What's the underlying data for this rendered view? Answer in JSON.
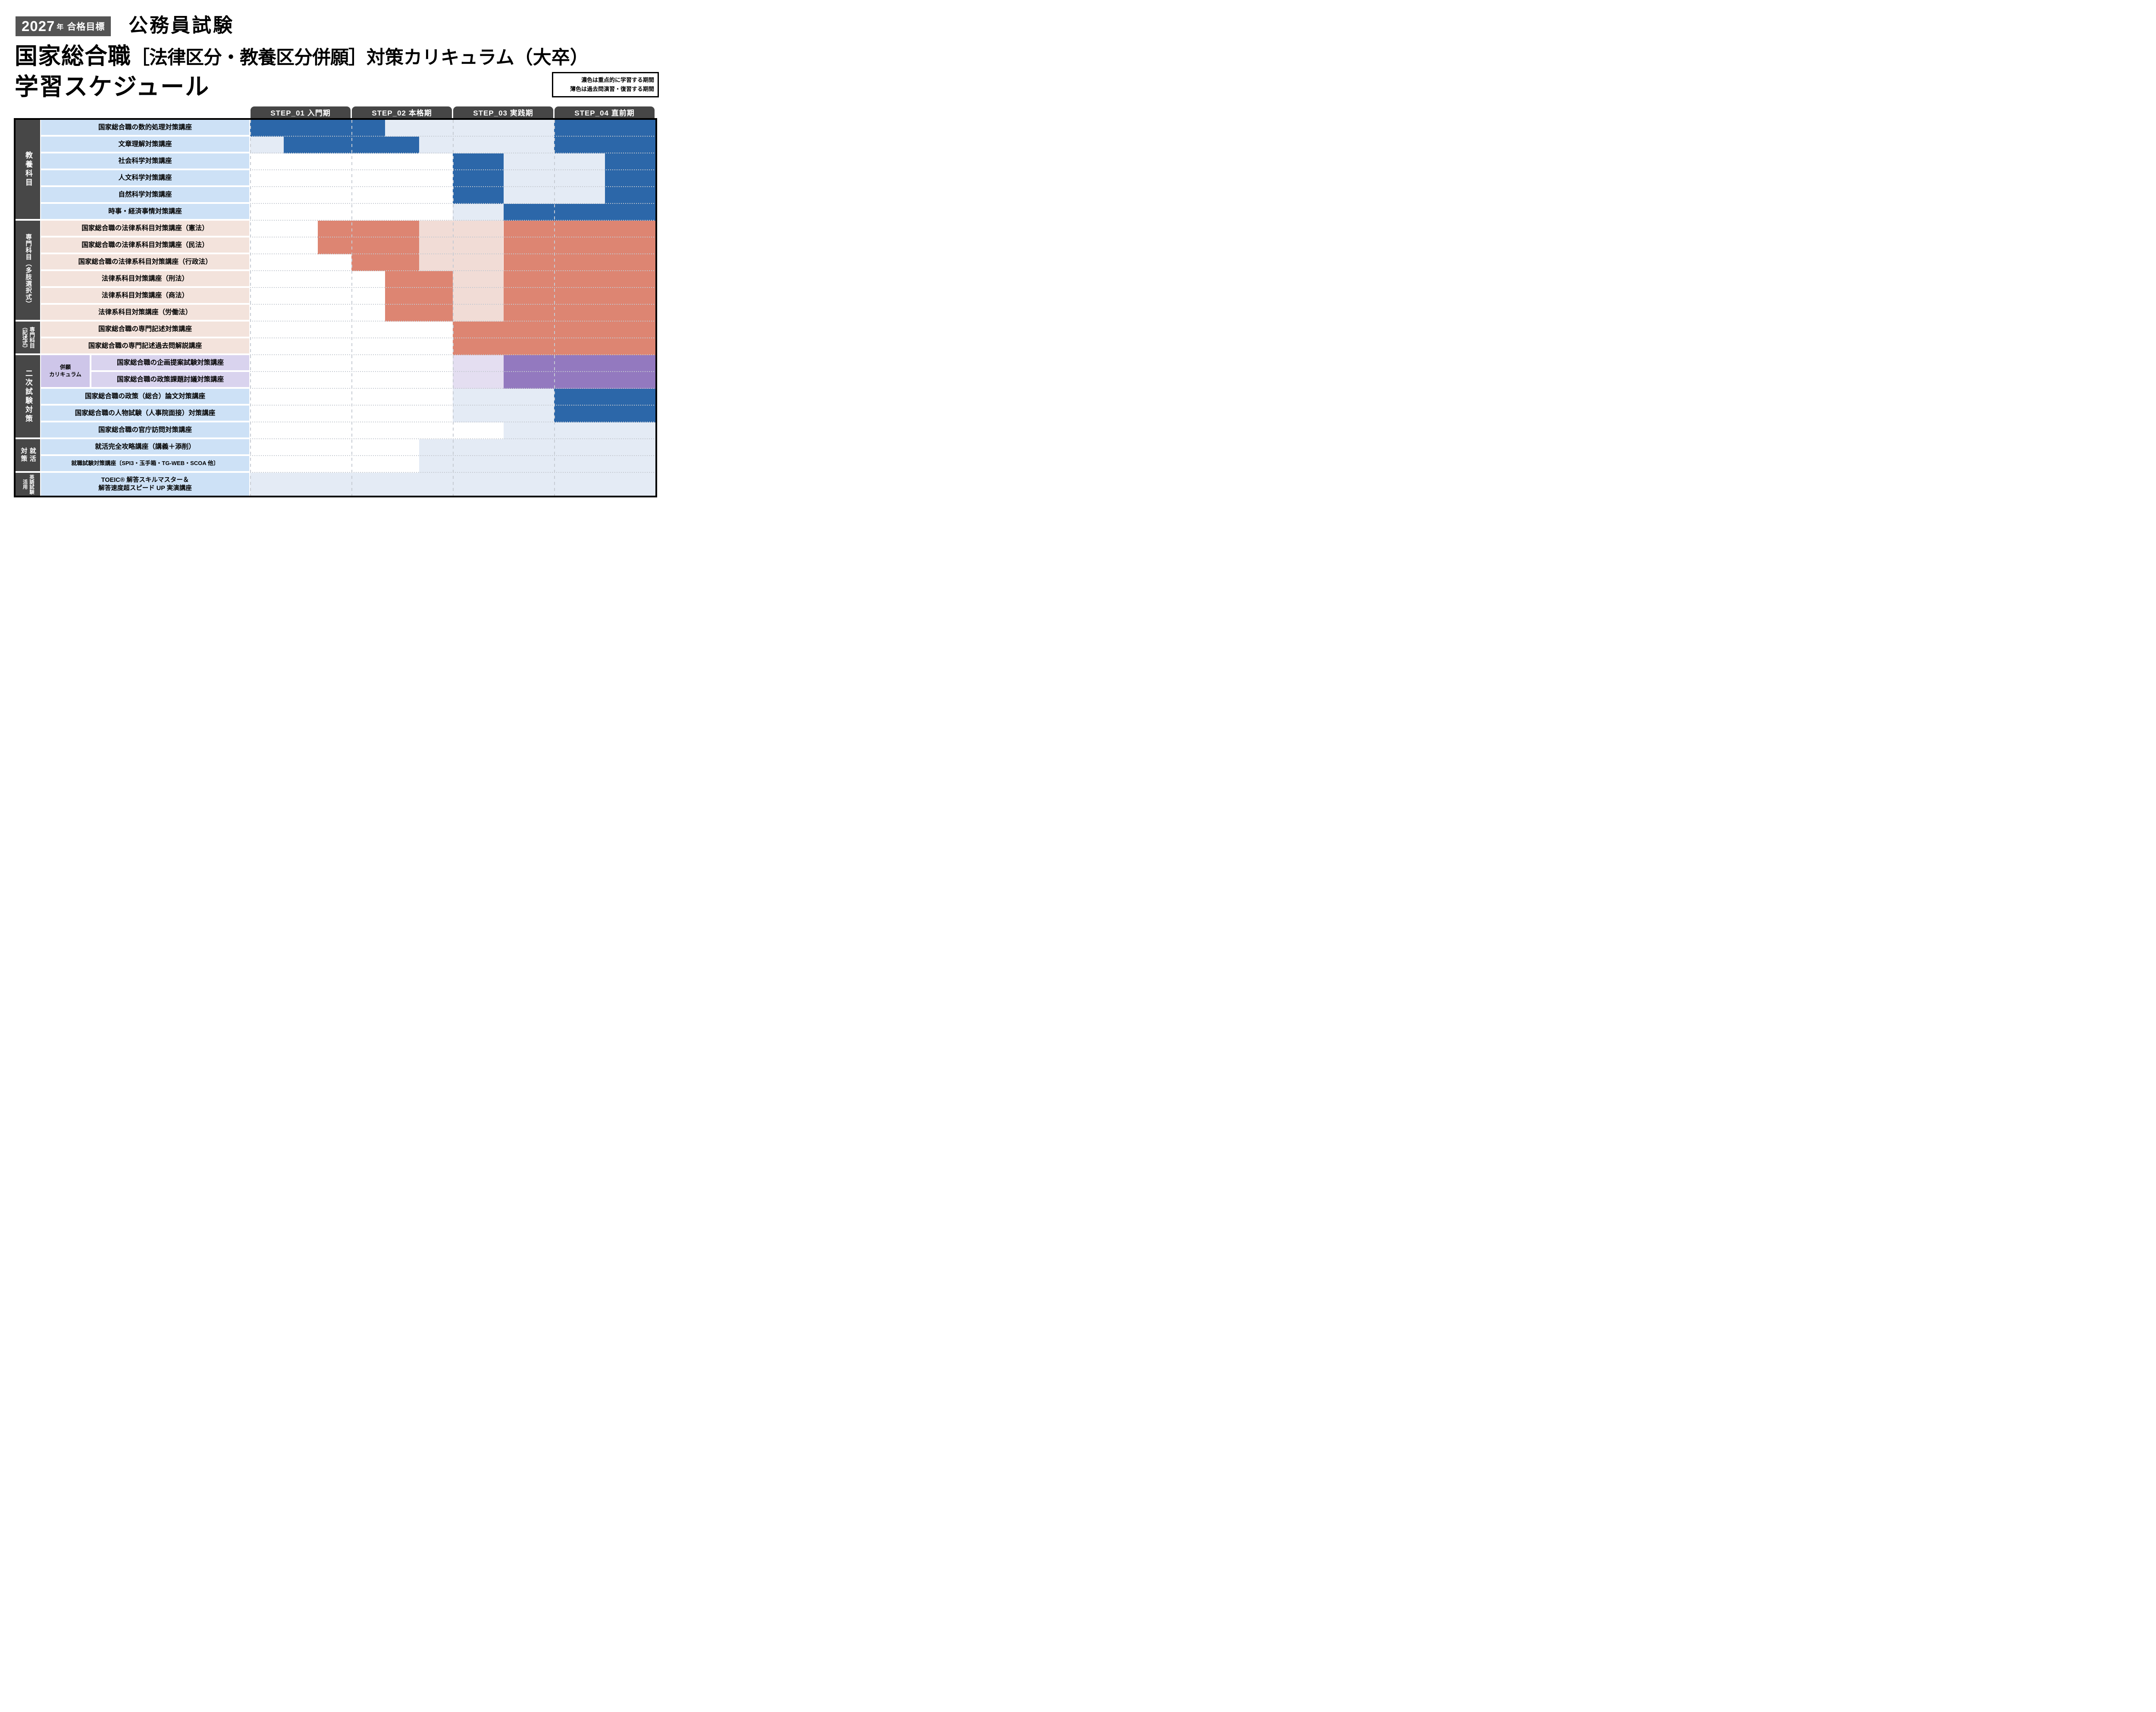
{
  "header": {
    "badge": {
      "year": "2027",
      "year_suffix": "年",
      "label": "合格目標"
    },
    "exam_category": "公務員試験",
    "title": {
      "main": "国家総合職",
      "bracket": "［法律区分・教養区分併願］",
      "tail": "対策カリキュラム（大卒）"
    },
    "subtitle": "学習スケジュール",
    "legend": {
      "line1": "濃色は重点的に学習する期間",
      "line2": "薄色は過去問演習・復習する期間"
    }
  },
  "steps": [
    {
      "label": "STEP_01 入門期"
    },
    {
      "label": "STEP_02 本格期"
    },
    {
      "label": "STEP_03 実践期"
    },
    {
      "label": "STEP_04 直前期"
    }
  ],
  "colors": {
    "blue_dark": "#2c67a9",
    "blue_light": "#e4ebf5",
    "blue_label": "#cde1f6",
    "salmon_dark": "#dd8572",
    "salmon_light": "#f1dcd6",
    "salmon_label": "#f3e3dc",
    "purple_dark": "#9379bf",
    "purple_light": "#e4def1",
    "purple_label": "#d9d3ee",
    "heigan_cell": "#cec6e9",
    "group_bg": "#474747",
    "step_header_bg": "#464646",
    "badge_bg": "#545454",
    "grid_dash": "#c6cbd3",
    "border": "#000000"
  },
  "legend_meaning": {
    "dark": "重点的に学習する期間",
    "light": "過去問演習・復習する期間"
  },
  "groups": [
    {
      "id": "kyoyo",
      "label": "教養科目",
      "first_row": 0,
      "last_row": 5
    },
    {
      "id": "senmon-takushiki",
      "label": "専門科目（多肢選択式）",
      "first_row": 6,
      "last_row": 11
    },
    {
      "id": "senmon-kijutsu",
      "label": "専門科目\n（記述式）",
      "first_row": 12,
      "last_row": 13
    },
    {
      "id": "niji-shiken",
      "label": "二次試験対策",
      "first_row": 14,
      "last_row": 18
    },
    {
      "id": "shukatsu",
      "label": "就活\n対策",
      "first_row": 19,
      "last_row": 20
    },
    {
      "id": "eigo-shiken",
      "label": "英語試験\n活用",
      "first_row": 21,
      "last_row": 21
    }
  ],
  "sub_curriculum": {
    "label": "併願\nカリキュラム",
    "first_row": 14,
    "last_row": 15
  },
  "rows": [
    {
      "label": "国家総合職の数的処理対策講座",
      "palette": "blue",
      "segments": [
        [
          0,
          4,
          "dark"
        ],
        [
          4,
          9,
          "light"
        ],
        [
          9,
          12,
          "dark"
        ]
      ]
    },
    {
      "label": "文章理解対策講座",
      "palette": "blue",
      "segments": [
        [
          0,
          1,
          "light"
        ],
        [
          1,
          5,
          "dark"
        ],
        [
          5,
          9,
          "light"
        ],
        [
          9,
          12,
          "dark"
        ]
      ]
    },
    {
      "label": "社会科学対策講座",
      "palette": "blue",
      "segments": [
        [
          6,
          7.5,
          "dark"
        ],
        [
          7.5,
          10.5,
          "light"
        ],
        [
          10.5,
          12,
          "dark"
        ]
      ]
    },
    {
      "label": "人文科学対策講座",
      "palette": "blue",
      "segments": [
        [
          6,
          7.5,
          "dark"
        ],
        [
          7.5,
          10.5,
          "light"
        ],
        [
          10.5,
          12,
          "dark"
        ]
      ]
    },
    {
      "label": "自然科学対策講座",
      "palette": "blue",
      "segments": [
        [
          6,
          7.5,
          "dark"
        ],
        [
          7.5,
          10.5,
          "light"
        ],
        [
          10.5,
          12,
          "dark"
        ]
      ]
    },
    {
      "label": "時事・経済事情対策講座",
      "palette": "blue",
      "segments": [
        [
          6,
          7.5,
          "light"
        ],
        [
          7.5,
          12,
          "dark"
        ]
      ]
    },
    {
      "label": "国家総合職の法律系科目対策講座（憲法）",
      "palette": "salmon",
      "segments": [
        [
          2,
          5,
          "dark"
        ],
        [
          5,
          7.5,
          "light"
        ],
        [
          7.5,
          12,
          "dark"
        ]
      ]
    },
    {
      "label": "国家総合職の法律系科目対策講座（民法）",
      "palette": "salmon",
      "segments": [
        [
          2,
          5,
          "dark"
        ],
        [
          5,
          7.5,
          "light"
        ],
        [
          7.5,
          12,
          "dark"
        ]
      ]
    },
    {
      "label": "国家総合職の法律系科目対策講座（行政法）",
      "palette": "salmon",
      "segments": [
        [
          3,
          5,
          "dark"
        ],
        [
          5,
          7.5,
          "light"
        ],
        [
          7.5,
          12,
          "dark"
        ]
      ]
    },
    {
      "label": "法律系科目対策講座（刑法）",
      "palette": "salmon",
      "segments": [
        [
          4,
          6,
          "dark"
        ],
        [
          6,
          7.5,
          "light"
        ],
        [
          7.5,
          12,
          "dark"
        ]
      ]
    },
    {
      "label": "法律系科目対策講座（商法）",
      "palette": "salmon",
      "segments": [
        [
          4,
          6,
          "dark"
        ],
        [
          6,
          7.5,
          "light"
        ],
        [
          7.5,
          12,
          "dark"
        ]
      ]
    },
    {
      "label": "法律系科目対策講座（労働法）",
      "palette": "salmon",
      "segments": [
        [
          4,
          6,
          "dark"
        ],
        [
          6,
          7.5,
          "light"
        ],
        [
          7.5,
          12,
          "dark"
        ]
      ]
    },
    {
      "label": "国家総合職の専門記述対策講座",
      "palette": "salmon",
      "segments": [
        [
          6,
          12,
          "dark"
        ]
      ]
    },
    {
      "label": "国家総合職の専門記述過去問解説講座",
      "palette": "salmon",
      "segments": [
        [
          6,
          12,
          "dark"
        ]
      ]
    },
    {
      "label": "国家総合職の企画提案試験対策講座",
      "palette": "purple",
      "segments": [
        [
          6,
          7.5,
          "light"
        ],
        [
          7.5,
          12,
          "dark"
        ]
      ]
    },
    {
      "label": "国家総合職の政策課題討議対策講座",
      "palette": "purple",
      "segments": [
        [
          6,
          7.5,
          "light"
        ],
        [
          7.5,
          12,
          "dark"
        ]
      ]
    },
    {
      "label": "国家総合職の政策（総合）論文対策講座",
      "palette": "blue",
      "segments": [
        [
          6,
          9,
          "light"
        ],
        [
          9,
          12,
          "dark"
        ]
      ]
    },
    {
      "label": "国家総合職の人物試験（人事院面接）対策講座",
      "palette": "blue",
      "segments": [
        [
          6,
          9,
          "light"
        ],
        [
          9,
          12,
          "dark"
        ]
      ]
    },
    {
      "label": "国家総合職の官庁訪問対策講座",
      "palette": "blue",
      "segments": [
        [
          7.5,
          12,
          "light"
        ]
      ]
    },
    {
      "label": "就活完全攻略講座（講義＋添削）",
      "palette": "blue",
      "segments": [
        [
          5,
          12,
          "light"
        ]
      ]
    },
    {
      "label": "就職試験対策講座〔SPI3・玉手箱・TG-WEB・SCOA 他〕",
      "palette": "blue",
      "size": "small",
      "segments": [
        [
          5,
          12,
          "light"
        ]
      ]
    },
    {
      "label": "TOEIC® 解答スキルマスター＆\n解答速度超スピード UP 実演講座",
      "palette": "blue",
      "size": "mid",
      "tall": true,
      "segments": [
        [
          0,
          12,
          "light"
        ]
      ]
    }
  ]
}
